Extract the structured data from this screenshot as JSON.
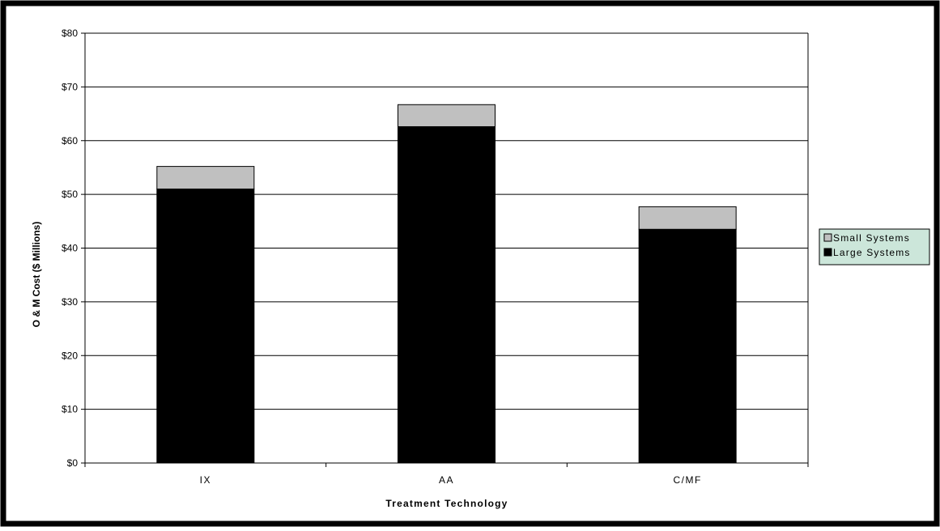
{
  "chart_data": {
    "type": "bar",
    "stacked": true,
    "categories": [
      "IX",
      "AA",
      "C/MF"
    ],
    "series": [
      {
        "name": "Large Systems",
        "values": [
          51.0,
          62.6,
          43.5
        ],
        "color": "#000000"
      },
      {
        "name": "Small Systems",
        "values": [
          4.2,
          4.1,
          4.2
        ],
        "color": "#c0c0c0"
      }
    ],
    "xlabel": "Treatment Technology",
    "ylabel": "O & M Cost ($ Millions)",
    "ylim": [
      0,
      80
    ],
    "yticks": [
      0,
      10,
      20,
      30,
      40,
      50,
      60,
      70,
      80
    ],
    "ytick_labels": [
      "$0",
      "$10",
      "$20",
      "$30",
      "$40",
      "$50",
      "$60",
      "$70",
      "$80"
    ],
    "grid": true,
    "legend": {
      "position": "right",
      "order": [
        "Small Systems",
        "Large Systems"
      ],
      "background": "#cce6da"
    }
  }
}
